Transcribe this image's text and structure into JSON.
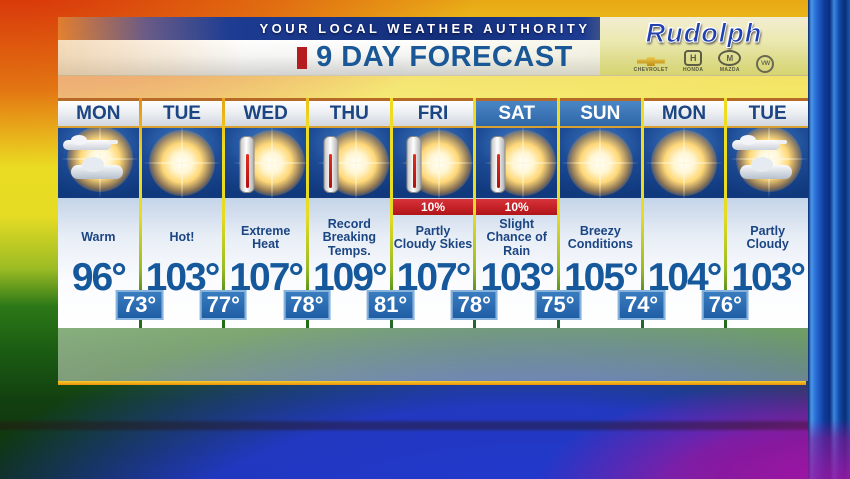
{
  "header": {
    "authority_text": "YOUR LOCAL WEATHER AUTHORITY",
    "title": "9 DAY FORECAST",
    "sponsor": {
      "name": "Rudolph",
      "brands": [
        {
          "glyph": "",
          "label": "CHEVROLET"
        },
        {
          "glyph": "H",
          "label": "HONDA"
        },
        {
          "glyph": "M",
          "label": "MAZDA"
        },
        {
          "glyph": "VW",
          "label": ""
        }
      ]
    }
  },
  "forecast": {
    "days": [
      {
        "day": "MON",
        "icon": "sun-clouds",
        "precip": "",
        "condition": "Warm",
        "high": "96°",
        "low": "73°",
        "highlight": false
      },
      {
        "day": "TUE",
        "icon": "sun",
        "precip": "",
        "condition": "Hot!",
        "high": "103°",
        "low": "77°",
        "highlight": false
      },
      {
        "day": "WED",
        "icon": "thermometer-sun",
        "precip": "",
        "condition": "Extreme Heat",
        "high": "107°",
        "low": "78°",
        "highlight": false
      },
      {
        "day": "THU",
        "icon": "thermometer-sun",
        "precip": "",
        "condition": "Record Breaking Temps.",
        "high": "109°",
        "low": "81°",
        "highlight": false
      },
      {
        "day": "FRI",
        "icon": "thermometer-sun",
        "precip": "10%",
        "condition": "Partly Cloudy Skies",
        "high": "107°",
        "low": "78°",
        "highlight": false
      },
      {
        "day": "SAT",
        "icon": "thermometer-sun",
        "precip": "10%",
        "condition": "Slight Chance of Rain",
        "high": "103°",
        "low": "75°",
        "highlight": true
      },
      {
        "day": "SUN",
        "icon": "sun",
        "precip": "",
        "condition": "Breezy Conditions",
        "high": "105°",
        "low": "74°",
        "highlight": true
      },
      {
        "day": "MON",
        "icon": "sun",
        "precip": "",
        "condition": "",
        "high": "104°",
        "low": "76°",
        "highlight": false
      },
      {
        "day": "TUE",
        "icon": "sun-clouds",
        "precip": "",
        "condition": "Partly Cloudy",
        "high": "103°",
        "low": "",
        "highlight": false
      }
    ]
  },
  "colors": {
    "authority_bar_blue": "#132e7a",
    "title_text_blue": "#1a5797",
    "title_accent_red": "#b51c20",
    "day_text_blue": "#1b4583",
    "weekend_header_blue": "#3a78bc",
    "icon_sky_blue": "#1c4a94",
    "precip_red": "#c3232a",
    "high_temp_blue": "#15589b",
    "low_badge_blue": "#2a6cb4",
    "gold_line": "#e8a612"
  }
}
